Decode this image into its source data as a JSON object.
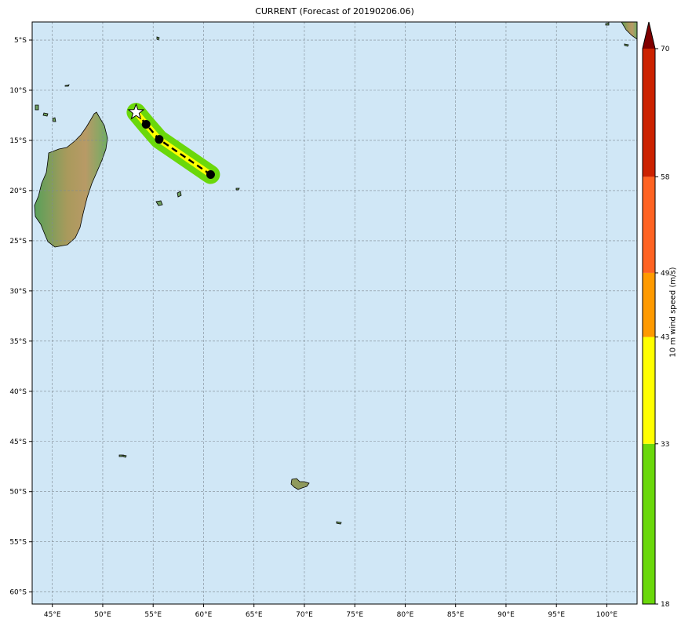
{
  "title": "CURRENT (Forecast of 20190206.06)",
  "map": {
    "lon_range": [
      43,
      103
    ],
    "lat_range": [
      -61.2,
      -3.2
    ],
    "lon_ticks": [
      {
        "value": 45,
        "label": "45°E"
      },
      {
        "value": 50,
        "label": "50°E"
      },
      {
        "value": 55,
        "label": "55°E"
      },
      {
        "value": 60,
        "label": "60°E"
      },
      {
        "value": 65,
        "label": "65°E"
      },
      {
        "value": 70,
        "label": "70°E"
      },
      {
        "value": 75,
        "label": "75°E"
      },
      {
        "value": 80,
        "label": "80°E"
      },
      {
        "value": 85,
        "label": "85°E"
      },
      {
        "value": 90,
        "label": "90°E"
      },
      {
        "value": 95,
        "label": "95°E"
      },
      {
        "value": 100,
        "label": "100°E"
      }
    ],
    "lat_ticks": [
      {
        "value": -5,
        "label": "5°S"
      },
      {
        "value": -10,
        "label": "10°S"
      },
      {
        "value": -15,
        "label": "15°S"
      },
      {
        "value": -20,
        "label": "20°S"
      },
      {
        "value": -25,
        "label": "25°S"
      },
      {
        "value": -30,
        "label": "30°S"
      },
      {
        "value": -35,
        "label": "35°S"
      },
      {
        "value": -40,
        "label": "40°S"
      },
      {
        "value": -45,
        "label": "45°S"
      },
      {
        "value": -50,
        "label": "50°S"
      },
      {
        "value": -55,
        "label": "55°S"
      },
      {
        "value": -60,
        "label": "60°S"
      }
    ],
    "colors": {
      "ocean": "#d0e7f6",
      "grid": "#7f8a93",
      "land_low": "#5aa05a",
      "land_high": "#b89a66"
    },
    "track": [
      [
        53.3,
        -12.2
      ],
      [
        54.3,
        -13.4
      ],
      [
        55.6,
        -14.9
      ],
      [
        60.7,
        -18.4
      ]
    ],
    "track_points": [
      [
        54.3,
        -13.4
      ],
      [
        55.6,
        -14.9
      ],
      [
        60.7,
        -18.4
      ]
    ],
    "current_position": [
      53.3,
      -12.2
    ],
    "swath_color": "#6ad80a",
    "track_color": "#ffff00"
  },
  "colorbar": {
    "label": "10 m wind speed (m/s)",
    "range": [
      18,
      70
    ],
    "bounds": [
      18,
      33,
      43,
      49,
      58,
      70
    ],
    "bound_labels": [
      "18",
      "33",
      "43",
      "49",
      "58",
      "70"
    ],
    "colors": [
      "#6ad80a",
      "#ffff00",
      "#ff9a00",
      "#ff6322",
      "#cc2200"
    ],
    "extend_color": "#800000"
  }
}
